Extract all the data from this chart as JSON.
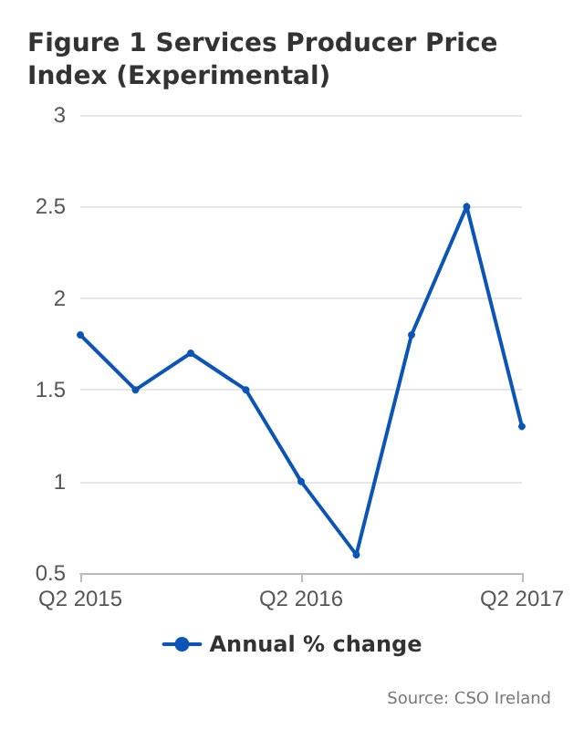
{
  "chart_data": {
    "type": "line",
    "title": "Figure 1 Services Producer Price Index (Experimental)",
    "categories": [
      "Q2 2015",
      null,
      null,
      null,
      "Q2 2016",
      null,
      null,
      null,
      "Q2 2017"
    ],
    "series": [
      {
        "name": "Annual % change",
        "color": "#0b55b8",
        "values": [
          1.8,
          1.5,
          1.7,
          1.5,
          1.0,
          0.6,
          1.8,
          2.5,
          1.3
        ]
      }
    ],
    "ylim": [
      0.5,
      3
    ],
    "yticks": [
      0.5,
      1,
      1.5,
      2,
      2.5,
      3
    ],
    "grid": "y",
    "legend": "bottom",
    "marker": "circle",
    "line_style": "solid",
    "annotations": [
      "Source: CSO Ireland"
    ]
  }
}
